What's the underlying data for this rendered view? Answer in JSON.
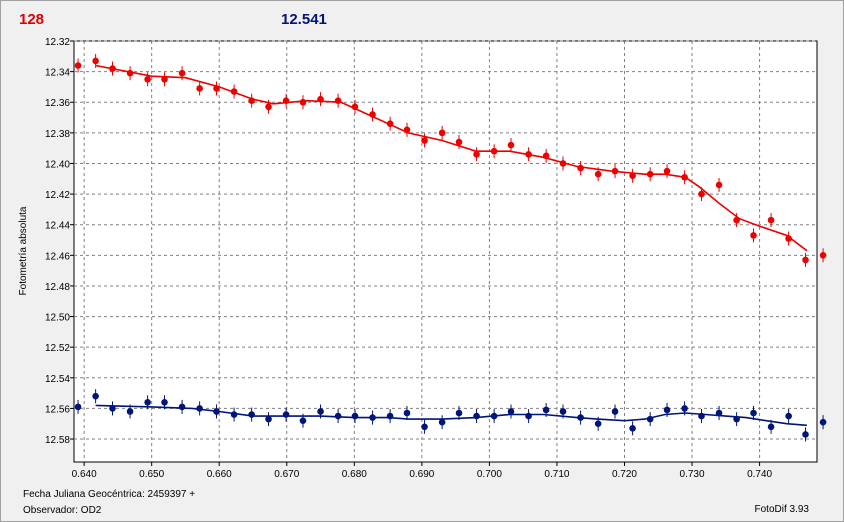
{
  "header": {
    "count": "128",
    "magnitude": "12.541",
    "count_color": "#e00000",
    "magnitude_color": "#00147a"
  },
  "footer": {
    "jd_label": "Fecha Juliana Geocéntrica: 2459397 +",
    "observer_label": "Observador: OD2",
    "version": "FotoDif 3.93"
  },
  "chart_data": {
    "type": "scatter",
    "title": "",
    "xlabel": "",
    "ylabel": "Fotometría absoluta",
    "xlim": [
      0.6385,
      0.7485
    ],
    "ylim": [
      12.32,
      12.595
    ],
    "y_inverted": true,
    "grid": true,
    "x_ticks": [
      "0.640",
      "0.650",
      "0.660",
      "0.670",
      "0.680",
      "0.690",
      "0.700",
      "0.710",
      "0.720",
      "0.730",
      "0.740"
    ],
    "y_ticks": [
      "12.32",
      "12.34",
      "12.36",
      "12.38",
      "12.40",
      "12.42",
      "12.44",
      "12.46",
      "12.48",
      "12.50",
      "12.52",
      "12.54",
      "12.56",
      "12.58"
    ],
    "series": [
      {
        "color": "#ee0000",
        "x": [
          0.6391,
          0.6417,
          0.6442,
          0.6468,
          0.6494,
          0.6519,
          0.6545,
          0.6571,
          0.6596,
          0.6622,
          0.6648,
          0.6673,
          0.6699,
          0.6724,
          0.675,
          0.6776,
          0.6801,
          0.6827,
          0.6853,
          0.6878,
          0.6904,
          0.693,
          0.6955,
          0.6981,
          0.7007,
          0.7032,
          0.7058,
          0.7084,
          0.7109,
          0.7135,
          0.7161,
          0.7186,
          0.7212,
          0.7238,
          0.7263,
          0.7289,
          0.7314,
          0.734,
          0.7366,
          0.7391,
          0.7417,
          0.7443,
          0.7468,
          0.7494
        ],
        "y": [
          12.336,
          12.333,
          12.338,
          12.341,
          12.345,
          12.345,
          12.341,
          12.351,
          12.351,
          12.353,
          12.359,
          12.363,
          12.359,
          12.36,
          12.358,
          12.359,
          12.363,
          12.368,
          12.374,
          12.378,
          12.385,
          12.38,
          12.386,
          12.394,
          12.392,
          12.388,
          12.394,
          12.395,
          12.4,
          12.403,
          12.407,
          12.405,
          12.408,
          12.407,
          12.405,
          12.409,
          12.42,
          12.414,
          12.437,
          12.447,
          12.437,
          12.449,
          12.463,
          12.46
        ],
        "fit_x": [
          0.6417,
          0.65,
          0.655,
          0.66,
          0.665,
          0.668,
          0.673,
          0.678,
          0.683,
          0.688,
          0.693,
          0.698,
          0.703,
          0.708,
          0.713,
          0.718,
          0.723,
          0.726,
          0.729,
          0.731,
          0.734,
          0.737,
          0.74,
          0.744,
          0.747
        ],
        "fit_y": [
          12.336,
          12.343,
          12.344,
          12.35,
          12.358,
          12.361,
          12.359,
          12.36,
          12.37,
          12.38,
          12.385,
          12.392,
          12.392,
          12.396,
          12.402,
          12.405,
          12.407,
          12.407,
          12.409,
          12.415,
          12.426,
          12.436,
          12.441,
          12.447,
          12.457
        ]
      },
      {
        "color": "#00147a",
        "x": [
          0.6391,
          0.6417,
          0.6442,
          0.6468,
          0.6494,
          0.6519,
          0.6545,
          0.6571,
          0.6596,
          0.6622,
          0.6648,
          0.6673,
          0.6699,
          0.6724,
          0.675,
          0.6776,
          0.6801,
          0.6827,
          0.6853,
          0.6878,
          0.6904,
          0.693,
          0.6955,
          0.6981,
          0.7007,
          0.7032,
          0.7058,
          0.7084,
          0.7109,
          0.7135,
          0.7161,
          0.7186,
          0.7212,
          0.7238,
          0.7263,
          0.7289,
          0.7314,
          0.734,
          0.7366,
          0.7391,
          0.7417,
          0.7443,
          0.7468,
          0.7494
        ],
        "y": [
          12.559,
          12.552,
          12.56,
          12.562,
          12.556,
          12.556,
          12.559,
          12.56,
          12.562,
          12.564,
          12.564,
          12.567,
          12.564,
          12.568,
          12.562,
          12.565,
          12.565,
          12.566,
          12.565,
          12.563,
          12.572,
          12.569,
          12.563,
          12.565,
          12.565,
          12.562,
          12.565,
          12.561,
          12.562,
          12.566,
          12.57,
          12.562,
          12.573,
          12.567,
          12.561,
          12.56,
          12.565,
          12.563,
          12.567,
          12.563,
          12.572,
          12.565,
          12.577,
          12.569
        ],
        "fit_x": [
          0.6417,
          0.65,
          0.656,
          0.66,
          0.665,
          0.67,
          0.675,
          0.68,
          0.685,
          0.688,
          0.693,
          0.698,
          0.703,
          0.708,
          0.713,
          0.716,
          0.72,
          0.723,
          0.726,
          0.729,
          0.732,
          0.735,
          0.738,
          0.741,
          0.744,
          0.747
        ],
        "fit_y": [
          12.558,
          12.559,
          12.56,
          12.562,
          12.565,
          12.565,
          12.565,
          12.566,
          12.566,
          12.567,
          12.567,
          12.566,
          12.564,
          12.564,
          12.566,
          12.567,
          12.568,
          12.567,
          12.564,
          12.563,
          12.564,
          12.565,
          12.566,
          12.568,
          12.57,
          12.571
        ]
      }
    ]
  }
}
